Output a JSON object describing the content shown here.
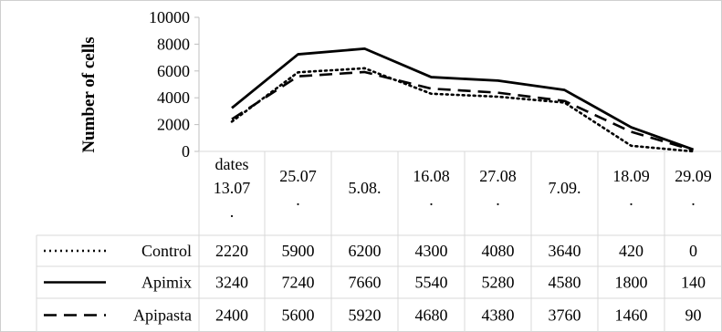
{
  "chart_data": {
    "type": "line",
    "ylabel": "Number of cells",
    "ylim": [
      0,
      10000
    ],
    "yticks": [
      "0",
      "2000",
      "4000",
      "6000",
      "8000",
      "10000"
    ],
    "y_tick_values": [
      0,
      2000,
      4000,
      6000,
      8000,
      10000
    ],
    "x_header": "dates",
    "categories": [
      [
        "13.07",
        "."
      ],
      [
        "25.07",
        "."
      ],
      [
        "5.08."
      ],
      [
        "16.08",
        "."
      ],
      [
        "27.08",
        "."
      ],
      [
        "7.09."
      ],
      [
        "18.09",
        "."
      ],
      [
        "29.09",
        "."
      ]
    ],
    "series": [
      {
        "name": "Control",
        "style": "dotted",
        "values": [
          2220,
          5900,
          6200,
          4300,
          4080,
          3640,
          420,
          0
        ],
        "display": [
          "2220",
          "5900",
          "6200",
          "4300",
          "4080",
          "3640",
          "420",
          "0"
        ]
      },
      {
        "name": "Apimix",
        "style": "solid",
        "values": [
          3240,
          7240,
          7660,
          5540,
          5280,
          4580,
          1800,
          140
        ],
        "display": [
          "3240",
          "7240",
          "7660",
          "5540",
          "5280",
          "4580",
          "1800",
          "140"
        ]
      },
      {
        "name": "Apipasta",
        "style": "dashed",
        "values": [
          2400,
          5600,
          5920,
          4680,
          4380,
          3760,
          1460,
          90
        ],
        "display": [
          "2400",
          "5600",
          "5920",
          "4680",
          "4380",
          "3760",
          "1460",
          "90"
        ]
      }
    ],
    "grid": false,
    "legend": "data-table"
  }
}
